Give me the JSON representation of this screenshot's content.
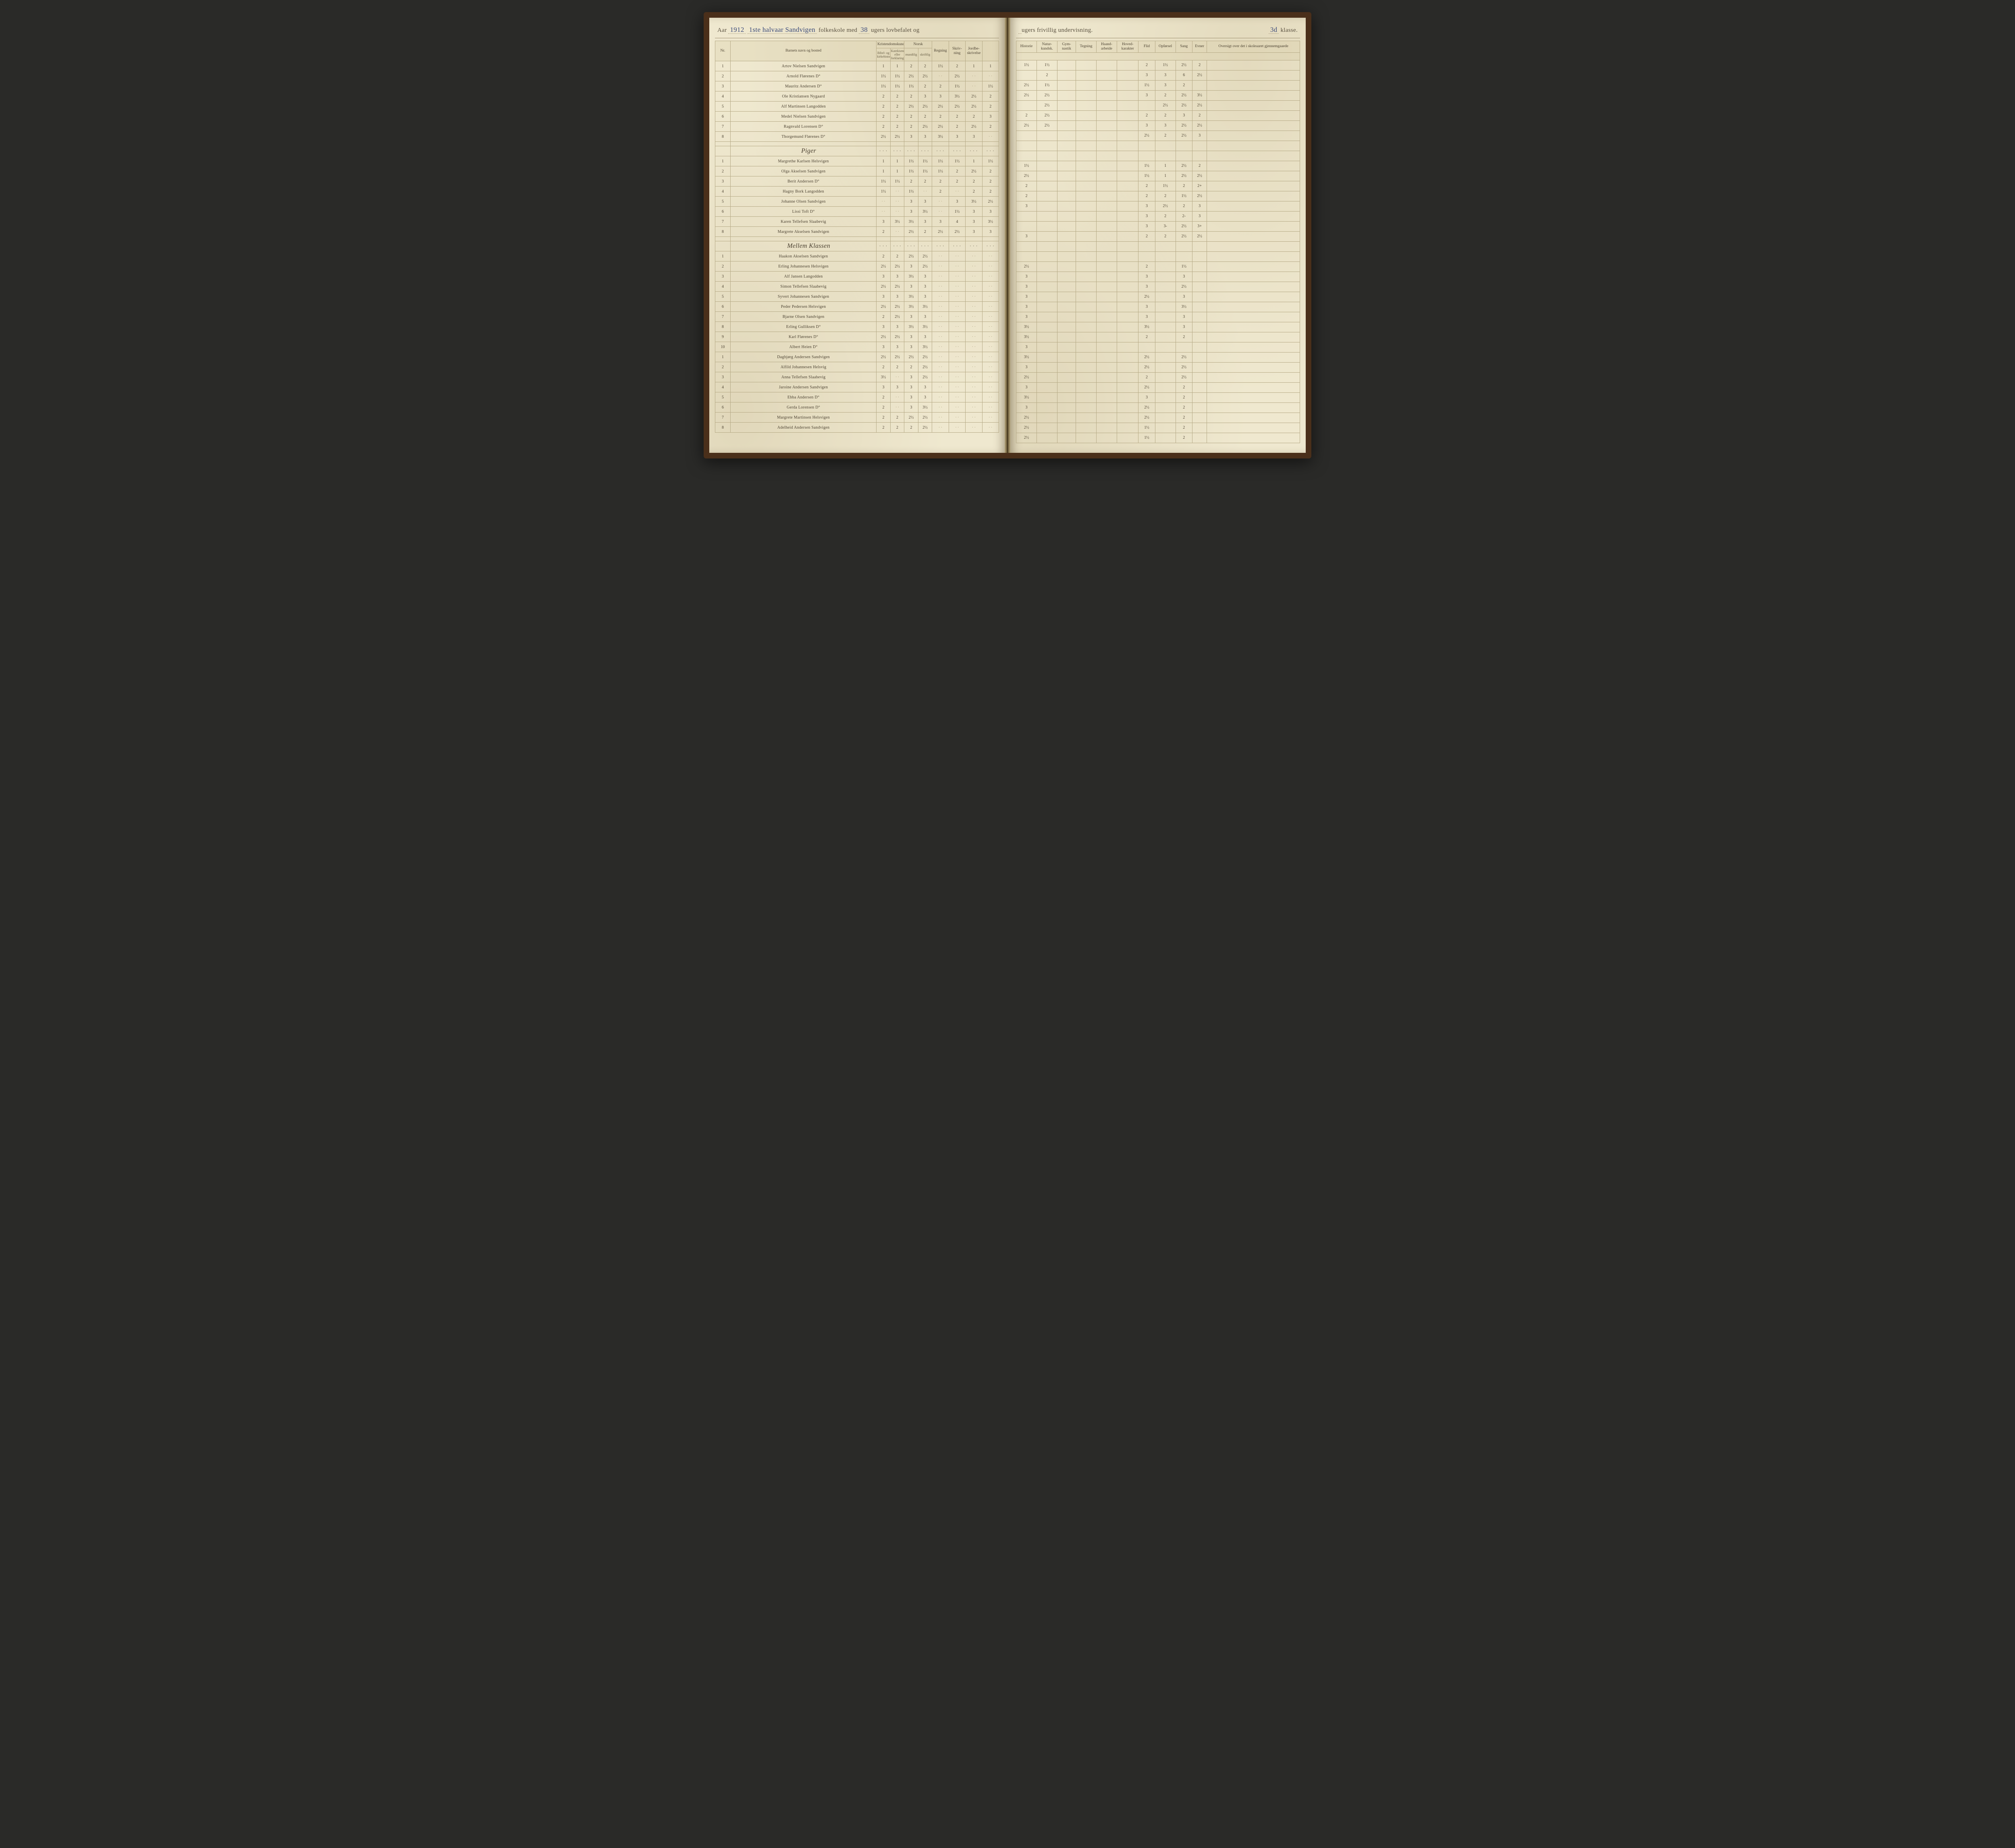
{
  "header": {
    "aar_label": "Aar",
    "aar_value": "1912",
    "halvaar": "1ste halvaar Sandvigen",
    "printed_1": "folkeskole med",
    "uger_lov": "38",
    "printed_2": "ugers lovbefalet og",
    "uger_fri": "",
    "printed_3": "ugers frivillig undervisning.",
    "klasse_value": "3d",
    "klasse_label": "klasse."
  },
  "columns_left": {
    "nr": "Nr.",
    "navn": "Barnets navn og bosted",
    "krist": "Kristendomskundskab",
    "krist_sub1": "Bibel- og kirkehistorie",
    "krist_sub2": "Katekismus eller forklaring",
    "norsk": "Norsk",
    "norsk_sub1": "mundtlig",
    "norsk_sub2": "skriftlig",
    "regning": "Regning",
    "skriv": "Skriv-\nning",
    "jord": "Jordbe-\nskrivelse"
  },
  "columns_right": {
    "historie": "Historie",
    "natur": "Natur-\nkundsk.",
    "gym": "Gym-\nnastik",
    "tegning": "Tegning",
    "haand": "Haand-\narbeide",
    "hoved": "Hoved-\nkarakter",
    "flid": "Flid",
    "opf": "Opførsel",
    "sang": "Sang",
    "evner": "Evner",
    "oversigt": "Oversigt over det i\nskoleaaret gjennemgaaede"
  },
  "sections": [
    {
      "title": "",
      "rows": [
        {
          "nr": "1",
          "name": "Artov Nielsen Sandvigen",
          "m": [
            "1",
            "1",
            "2",
            "2",
            "1½",
            "2",
            "1",
            "1",
            "1½",
            "1½",
            "2",
            "1½",
            "2½",
            "2"
          ]
        },
        {
          "nr": "2",
          "name": "Arnold Flørenes D°",
          "m": [
            "1½",
            "1½",
            "2½",
            "2½",
            "",
            "2½",
            "",
            "",
            "",
            "2",
            "3",
            "3",
            "6",
            "2½"
          ]
        },
        {
          "nr": "3",
          "name": "Mauritz Andersen D°",
          "m": [
            "1½",
            "1½",
            "1½",
            "2",
            "2",
            "1½",
            "",
            "1½",
            "2½",
            "1½",
            "1½",
            "3",
            "2",
            ""
          ]
        },
        {
          "nr": "4",
          "name": "Ole Kristiansen Nygaard",
          "m": [
            "2",
            "2",
            "2",
            "3",
            "3",
            "3½",
            "2½",
            "2",
            "2½",
            "2½",
            "3",
            "2",
            "2½",
            "3½"
          ]
        },
        {
          "nr": "5",
          "name": "Alf Martinsen Langodden",
          "m": [
            "2",
            "2",
            "2½",
            "2½",
            "2½",
            "2½",
            "2½",
            "2",
            "",
            "2½",
            "",
            "2½",
            "2½",
            "2½"
          ]
        },
        {
          "nr": "6",
          "name": "Medel Nielsen Sandvigen",
          "m": [
            "2",
            "2",
            "2",
            "2",
            "2",
            "2",
            "2",
            "3",
            "2",
            "2½",
            "2",
            "2",
            "3",
            "2"
          ]
        },
        {
          "nr": "7",
          "name": "Ragnvald Lorensen D°",
          "m": [
            "2",
            "2",
            "2",
            "2½",
            "2½",
            "2",
            "2½",
            "2",
            "2½",
            "2½",
            "3",
            "3",
            "2½",
            "2½"
          ]
        },
        {
          "nr": "8",
          "name": "Thorgemund Flørenes D°",
          "m": [
            "2½",
            "2½",
            "3",
            "3",
            "3½",
            "3",
            "3",
            "",
            "",
            "",
            "2½",
            "2",
            "2½",
            "3"
          ]
        }
      ]
    },
    {
      "title": "Piger",
      "rows": [
        {
          "nr": "1",
          "name": "Margrethe Karlsen Helsvigen",
          "m": [
            "1",
            "1",
            "1½",
            "1½",
            "1½",
            "1½",
            "1",
            "1½",
            "1½",
            "",
            "1½",
            "1",
            "2½",
            "2"
          ]
        },
        {
          "nr": "2",
          "name": "Olga Akselsen Sandvigen",
          "m": [
            "1",
            "1",
            "1½",
            "1½",
            "1½",
            "2",
            "2½",
            "2",
            "2½",
            "",
            "1½",
            "1",
            "2½",
            "2½"
          ]
        },
        {
          "nr": "3",
          "name": "Berit Andersen D°",
          "m": [
            "1½",
            "1½",
            "2",
            "2",
            "2",
            "2",
            "2",
            "2",
            "2",
            "",
            "2",
            "1½",
            "2",
            "2+"
          ]
        },
        {
          "nr": "4",
          "name": "Hagny Bork Langodden",
          "m": [
            "1½",
            "",
            "1½",
            "",
            "2",
            "",
            "2",
            "2",
            "2",
            "",
            "2",
            "2",
            "1½",
            "2½"
          ]
        },
        {
          "nr": "5",
          "name": "Johanne Olsen Sandvigen",
          "m": [
            "",
            "",
            "3",
            "3",
            "",
            "3",
            "3½",
            "2½",
            "3",
            "",
            "3",
            "2½",
            "2",
            "3"
          ]
        },
        {
          "nr": "6",
          "name": "Lissi Toft D°",
          "m": [
            "",
            "",
            "3",
            "3½",
            "",
            "1½",
            "3",
            "3",
            "",
            "",
            "3",
            "2",
            "2-",
            "3"
          ]
        },
        {
          "nr": "7",
          "name": "Karen Tellefsen Slaabevig",
          "m": [
            "3",
            "3½",
            "3½",
            "3",
            "3",
            "4",
            "3",
            "3½",
            "",
            "",
            "3",
            "3-",
            "2½",
            "3+"
          ]
        },
        {
          "nr": "8",
          "name": "Margrete Akselsen Sandvigen",
          "m": [
            "2",
            "",
            "2½",
            "2",
            "2½",
            "2½",
            "3",
            "3",
            "3",
            "",
            "2",
            "2",
            "2½",
            "2½"
          ]
        }
      ]
    },
    {
      "title": "Mellem Klassen",
      "rows": [
        {
          "nr": "1",
          "name": "Haakon Akselsen Sandvigen",
          "m": [
            "2",
            "2",
            "2½",
            "2½",
            "",
            "",
            "",
            "",
            "2½",
            "",
            "2",
            "",
            "1½",
            ""
          ]
        },
        {
          "nr": "2",
          "name": "Erling Johannesen Helsvigen",
          "m": [
            "2½",
            "2½",
            "3",
            "2½",
            "",
            "",
            "",
            "",
            "3",
            "",
            "3",
            "",
            "3",
            ""
          ]
        },
        {
          "nr": "3",
          "name": "Alf Jansen Langodden",
          "m": [
            "3",
            "3",
            "3½",
            "3",
            "",
            "",
            "",
            "",
            "3",
            "",
            "3",
            "",
            "2½",
            ""
          ]
        },
        {
          "nr": "4",
          "name": "Simon Tellefsen Slaabevig",
          "m": [
            "2½",
            "2½",
            "3",
            "3",
            "",
            "",
            "",
            "",
            "3",
            "",
            "2½",
            "",
            "3",
            ""
          ]
        },
        {
          "nr": "5",
          "name": "Syvert Johannesen Sandvigen",
          "m": [
            "3",
            "3",
            "3½",
            "3",
            "",
            "",
            "",
            "",
            "3",
            "",
            "3",
            "",
            "3½",
            ""
          ]
        },
        {
          "nr": "6",
          "name": "Peder Pedersen Helsvigen",
          "m": [
            "2½",
            "2½",
            "3½",
            "3½",
            "",
            "",
            "",
            "",
            "3",
            "",
            "3",
            "",
            "3",
            ""
          ]
        },
        {
          "nr": "7",
          "name": "Bjarne Olsen Sandvigen",
          "m": [
            "2",
            "2½",
            "3",
            "3",
            "",
            "",
            "",
            "",
            "3½",
            "",
            "3½",
            "",
            "3",
            ""
          ]
        },
        {
          "nr": "8",
          "name": "Erling Gulliksen D°",
          "m": [
            "3",
            "3",
            "3½",
            "3½",
            "",
            "",
            "",
            "",
            "3½",
            "",
            "2",
            "",
            "2",
            ""
          ]
        },
        {
          "nr": "9",
          "name": "Karl Flørenes D°",
          "m": [
            "2½",
            "2½",
            "3",
            "3",
            "",
            "",
            "",
            "",
            "3",
            "",
            "",
            "",
            "",
            ""
          ]
        },
        {
          "nr": "10",
          "name": "Albert Heien D°",
          "m": [
            "3",
            "3",
            "3",
            "3½",
            "",
            "",
            "",
            "",
            "3½",
            "",
            "2½",
            "",
            "2½",
            ""
          ]
        },
        {
          "nr": "1",
          "name": "Dagbjørg Andersen Sandvigen",
          "m": [
            "2½",
            "2½",
            "2½",
            "2½",
            "",
            "",
            "",
            "",
            "3",
            "",
            "2½",
            "",
            "2½",
            ""
          ]
        },
        {
          "nr": "2",
          "name": "Alfild Johannesen Helsvig",
          "m": [
            "2",
            "2",
            "2",
            "2½",
            "",
            "",
            "",
            "",
            "2½",
            "",
            "2",
            "",
            "2½",
            ""
          ]
        },
        {
          "nr": "3",
          "name": "Anna Tellefsen Slaabevig",
          "m": [
            "3½",
            "",
            "3",
            "2½",
            "",
            "",
            "",
            "",
            "3",
            "",
            "2½",
            "",
            "2",
            ""
          ]
        },
        {
          "nr": "4",
          "name": "Jaroine Andersen Sandvigen",
          "m": [
            "3",
            "3",
            "3",
            "3",
            "",
            "",
            "",
            "",
            "3½",
            "",
            "3",
            "",
            "2",
            ""
          ]
        },
        {
          "nr": "5",
          "name": "Ebba Andersen D°",
          "m": [
            "2",
            "",
            "3",
            "3",
            "",
            "",
            "",
            "",
            "3",
            "",
            "2½",
            "",
            "2",
            ""
          ]
        },
        {
          "nr": "6",
          "name": "Gerda Lorensen D°",
          "m": [
            "2",
            "",
            "3",
            "3½",
            "",
            "",
            "",
            "",
            "2½",
            "",
            "2½",
            "",
            "2",
            ""
          ]
        },
        {
          "nr": "7",
          "name": "Margrete Martinsen Helsvigen",
          "m": [
            "2",
            "2",
            "2½",
            "2½",
            "",
            "",
            "",
            "",
            "2½",
            "",
            "1½",
            "",
            "2",
            ""
          ]
        },
        {
          "nr": "8",
          "name": "Adelheid Andersen Sandvigen",
          "m": [
            "2",
            "2",
            "2",
            "2½",
            "",
            "",
            "",
            "",
            "2½",
            "",
            "1½",
            "",
            "2",
            ""
          ]
        }
      ]
    }
  ],
  "style": {
    "ink": "#34447a",
    "rule": "#b6aa86",
    "paper": "#efe8cf",
    "header_text": "#4a4030"
  }
}
